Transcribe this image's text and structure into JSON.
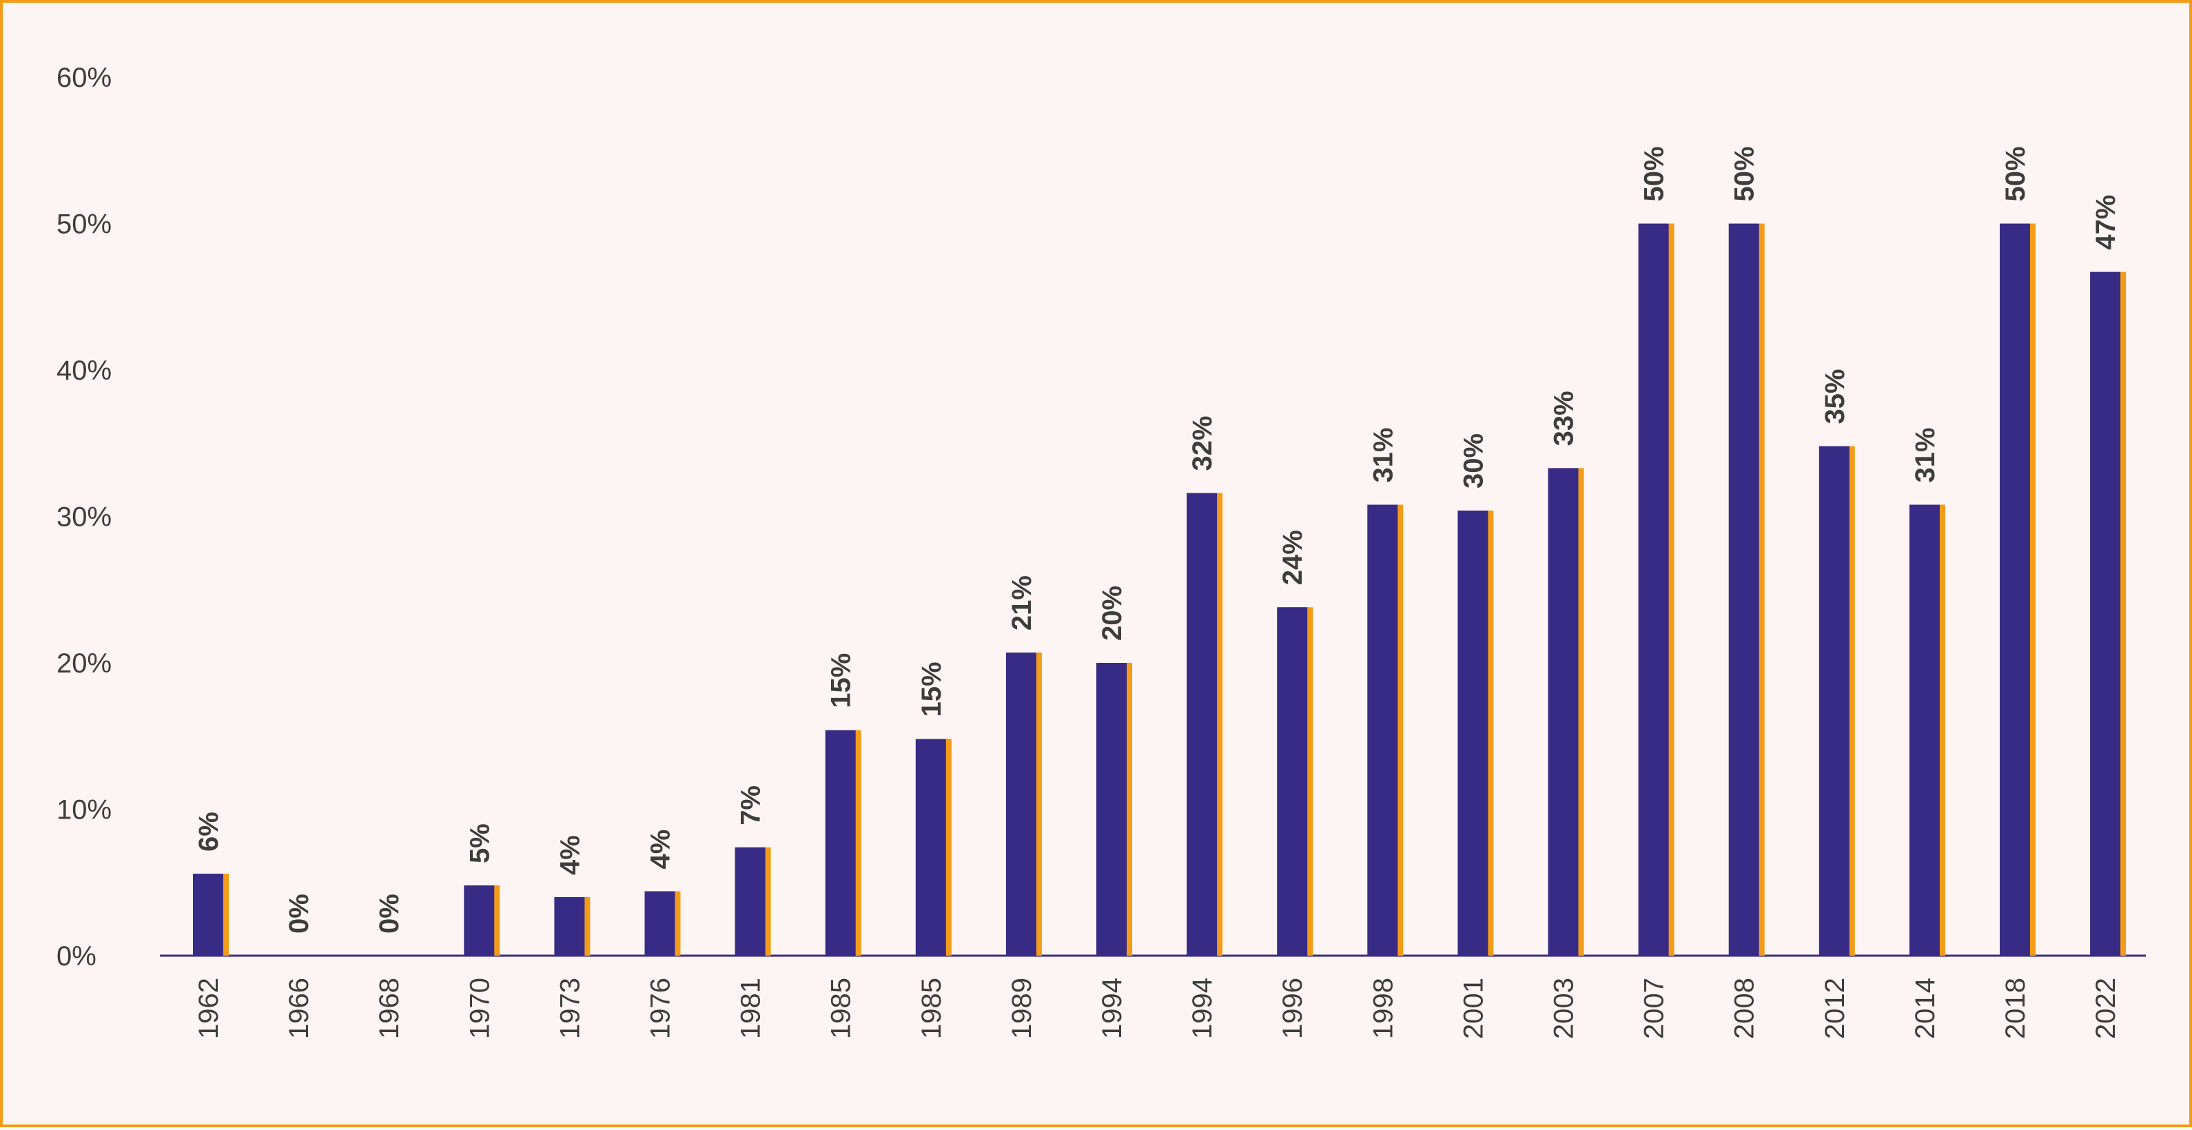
{
  "chart_data": {
    "type": "bar",
    "categories": [
      "1962",
      "1966",
      "1968",
      "1970",
      "1973",
      "1976",
      "1981",
      "1985",
      "1985",
      "1989",
      "1994",
      "1994",
      "1996",
      "1998",
      "2001",
      "2003",
      "2007",
      "2008",
      "2012",
      "2014",
      "2018",
      "2022"
    ],
    "values": [
      5.6,
      0,
      0,
      4.8,
      4.0,
      4.4,
      7.4,
      15.4,
      14.8,
      20.7,
      20.0,
      31.6,
      23.8,
      30.8,
      30.4,
      33.3,
      50,
      50,
      34.8,
      30.8,
      50,
      46.7
    ],
    "data_labels": [
      "6%",
      "0%",
      "0%",
      "5%",
      "4%",
      "4%",
      "7%",
      "15%",
      "15%",
      "21%",
      "20%",
      "32%",
      "24%",
      "31%",
      "30%",
      "33%",
      "50%",
      "50%",
      "35%",
      "31%",
      "50%",
      "47%"
    ],
    "y_ticks": [
      0,
      10,
      20,
      30,
      40,
      50,
      60
    ],
    "y_tick_labels": [
      "0%",
      "10%",
      "20%",
      "30%",
      "40%",
      "50%",
      "60%"
    ],
    "ylim": [
      0,
      60
    ],
    "title": "",
    "xlabel": "",
    "ylabel": "",
    "grid": false,
    "colors": {
      "bar": "#382b85",
      "bar_shadow": "#f39c1a",
      "axis": "#382b85",
      "background": "#fdf5f3",
      "border": "#f39c1a",
      "text": "#3d3d3d"
    }
  }
}
